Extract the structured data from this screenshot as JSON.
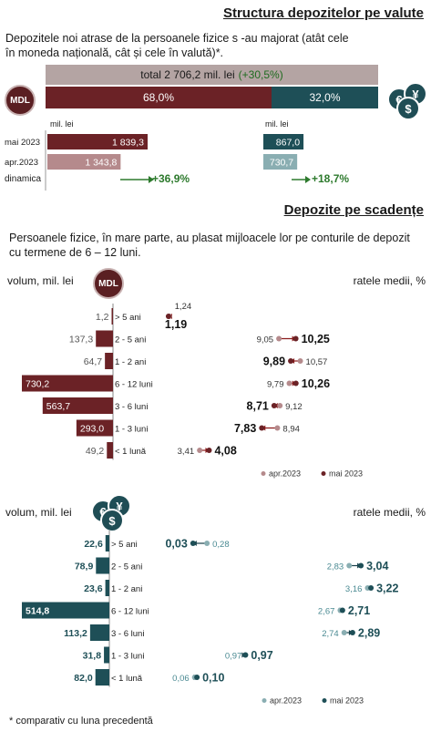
{
  "colors": {
    "mdl_dark": "#6b2226",
    "mdl_light": "#b58a8c",
    "fx_dark": "#1e4f57",
    "fx_light": "#8aaeb2",
    "total_bar": "#b4a4a3",
    "growth_green": "#2d7a2d"
  },
  "section1": {
    "title": "Structura depozitelor pe valute",
    "description": "Depozitele noi atrase de la persoanele fizice s -au majorat (atât cele în moneda națională, cât și cele în valută)*.",
    "total_label": "total 2 706,2 mil. lei",
    "total_change": "(+30,5%)",
    "mdl_icon": "MDL",
    "mdl_share": "68,0%",
    "fx_share": "32,0%",
    "fx_icon": "currency-coins-icon",
    "unit_mdl": "mil. lei",
    "unit_fx": "mil. lei",
    "rows": [
      {
        "label": "mai 2023",
        "mdl": 1839.3,
        "mdl_text": "1 839,3",
        "fx": 867.0,
        "fx_text": "867,0"
      },
      {
        "label": "apr.2023",
        "mdl": 1343.8,
        "mdl_text": "1 343,8",
        "fx": 730.7,
        "fx_text": "730,7"
      }
    ],
    "dynamics_label": "dinamica",
    "mdl_growth": "+36,9%",
    "fx_growth": "+18,7%"
  },
  "section2": {
    "title": "Depozite pe scadențe",
    "description": "Persoanele fizice, în mare parte, au plasat mijloacele lor pe conturile de depozit cu termene de 6 – 12 luni."
  },
  "chart_data": [
    {
      "type": "bar",
      "currency": "MDL",
      "xlabel": "volum, mil. lei",
      "ylabel": "ratele medii, %",
      "categories": [
        "> 5 ani",
        "2 - 5 ani",
        "1 - 2 ani",
        "6 - 12 luni",
        "3 - 6 luni",
        "1 - 3 luni",
        "< 1 lună"
      ],
      "volume_text": [
        "1,2",
        "137,3",
        "64,7",
        "730,2",
        "563,7",
        "293,0",
        "49,2"
      ],
      "volume": [
        1.2,
        137.3,
        64.7,
        730.2,
        563.7,
        293.0,
        49.2
      ],
      "series": [
        {
          "name": "apr.2023",
          "values": [
            1.24,
            9.05,
            10.57,
            9.79,
            9.12,
            8.94,
            3.41
          ],
          "labels": [
            "1,24",
            "9,05",
            "10,57",
            "9,79",
            "9,12",
            "8,94",
            "3,41"
          ]
        },
        {
          "name": "mai 2023",
          "values": [
            1.19,
            10.25,
            9.89,
            10.26,
            8.71,
            7.83,
            4.08
          ],
          "labels": [
            "1,19",
            "10,25",
            "9,89",
            "10,26",
            "8,71",
            "7,83",
            "4,08"
          ]
        }
      ]
    },
    {
      "type": "bar",
      "currency": "valută",
      "xlabel": "volum, mil. lei",
      "ylabel": "ratele medii, %",
      "categories": [
        "> 5 ani",
        "2 - 5 ani",
        "1 - 2 ani",
        "6 - 12 luni",
        "3 - 6 luni",
        "1 - 3 luni",
        "< 1 lună"
      ],
      "volume_text": [
        "22,6",
        "78,9",
        "23,6",
        "514,8",
        "113,2",
        "31,8",
        "82,0"
      ],
      "volume": [
        22.6,
        78.9,
        23.6,
        514.8,
        113.2,
        31.8,
        82.0
      ],
      "series": [
        {
          "name": "apr.2023",
          "values": [
            0.28,
            2.83,
            3.16,
            2.67,
            2.74,
            0.97,
            0.06
          ],
          "labels": [
            "0,28",
            "2,83",
            "3,16",
            "2,67",
            "2,74",
            "0,97",
            "0,06"
          ]
        },
        {
          "name": "mai 2023",
          "values": [
            0.03,
            3.04,
            3.22,
            2.71,
            2.89,
            0.97,
            0.1
          ],
          "labels": [
            "0,03",
            "3,04",
            "3,22",
            "2,71",
            "2,89",
            "0,97",
            "0,10"
          ]
        }
      ]
    }
  ],
  "footnote": "* comparativ cu luna precedentă"
}
